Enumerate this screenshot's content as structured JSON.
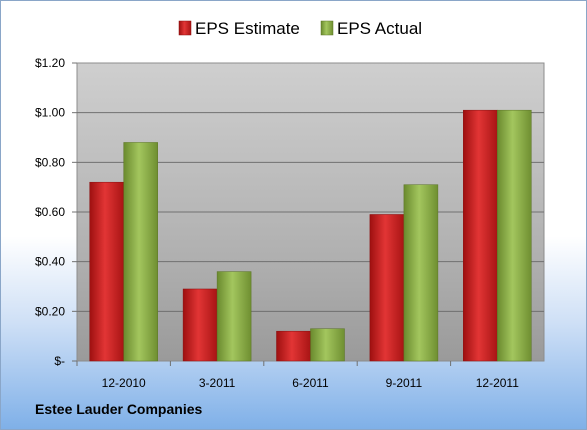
{
  "chart_data": {
    "type": "bar",
    "title": "",
    "categories": [
      "12-2010",
      "3-2011",
      "6-2011",
      "9-2011",
      "12-2011"
    ],
    "series": [
      {
        "name": "EPS Estimate",
        "values": [
          0.72,
          0.29,
          0.12,
          0.59,
          1.01
        ],
        "color": "#cc1f1f"
      },
      {
        "name": "EPS Actual",
        "values": [
          0.88,
          0.36,
          0.13,
          0.71,
          1.01
        ],
        "color": "#8cb04a"
      }
    ],
    "ylim": [
      0,
      1.2
    ],
    "yticks": [
      0,
      0.2,
      0.4,
      0.6,
      0.8,
      1.0,
      1.2
    ],
    "ytick_labels": [
      "$-",
      "$0.20",
      "$0.40",
      "$0.60",
      "$0.80",
      "$1.00",
      "$1.20"
    ],
    "legend": "top-center",
    "grid": true,
    "xlabel": "",
    "ylabel": ""
  },
  "footer": {
    "company": "Estee Lauder Companies"
  }
}
